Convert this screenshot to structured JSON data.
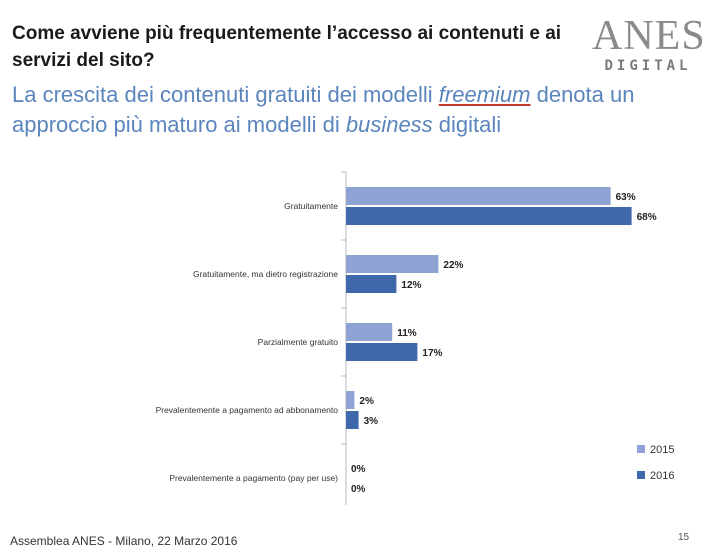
{
  "header": {
    "question": "Come avviene più frequentemente l’accesso ai contenuti e ai servizi del sito?",
    "subtitle_part1": "La crescita dei contenuti gratuiti dei modelli ",
    "subtitle_freemium": "freemium",
    "subtitle_part2": " denota un approccio più maturo ai modelli di ",
    "subtitle_business": "business",
    "subtitle_part3": " digitali"
  },
  "logo": {
    "main": "ANES",
    "sub": "DIGITAL"
  },
  "footer": {
    "text": "Assemblea ANES - Milano, 22 Marzo 2016",
    "page": "15"
  },
  "colors": {
    "series_2015": "#8ea3d3",
    "series_2016": "#3f68aa"
  },
  "chart_data": {
    "type": "bar",
    "orientation": "horizontal",
    "categories": [
      "Gratuitamente",
      "Gratuitamente, ma dietro registrazione",
      "Parzialmente gratuito",
      "Prevalentemente a pagamento ad abbonamento",
      "Prevalentemente a pagamento (pay per use)"
    ],
    "series": [
      {
        "name": "2015",
        "values": [
          63,
          22,
          11,
          2,
          0
        ],
        "labels": [
          "63%",
          "22%",
          "11%",
          "2%",
          "0%"
        ]
      },
      {
        "name": "2016",
        "values": [
          68,
          12,
          17,
          3,
          0
        ],
        "labels": [
          "68%",
          "12%",
          "17%",
          "3%",
          "0%"
        ]
      }
    ],
    "title": "",
    "xlabel": "",
    "ylabel": "",
    "xlim": [
      0,
      100
    ],
    "legend": "bottom-right",
    "grid": false
  }
}
